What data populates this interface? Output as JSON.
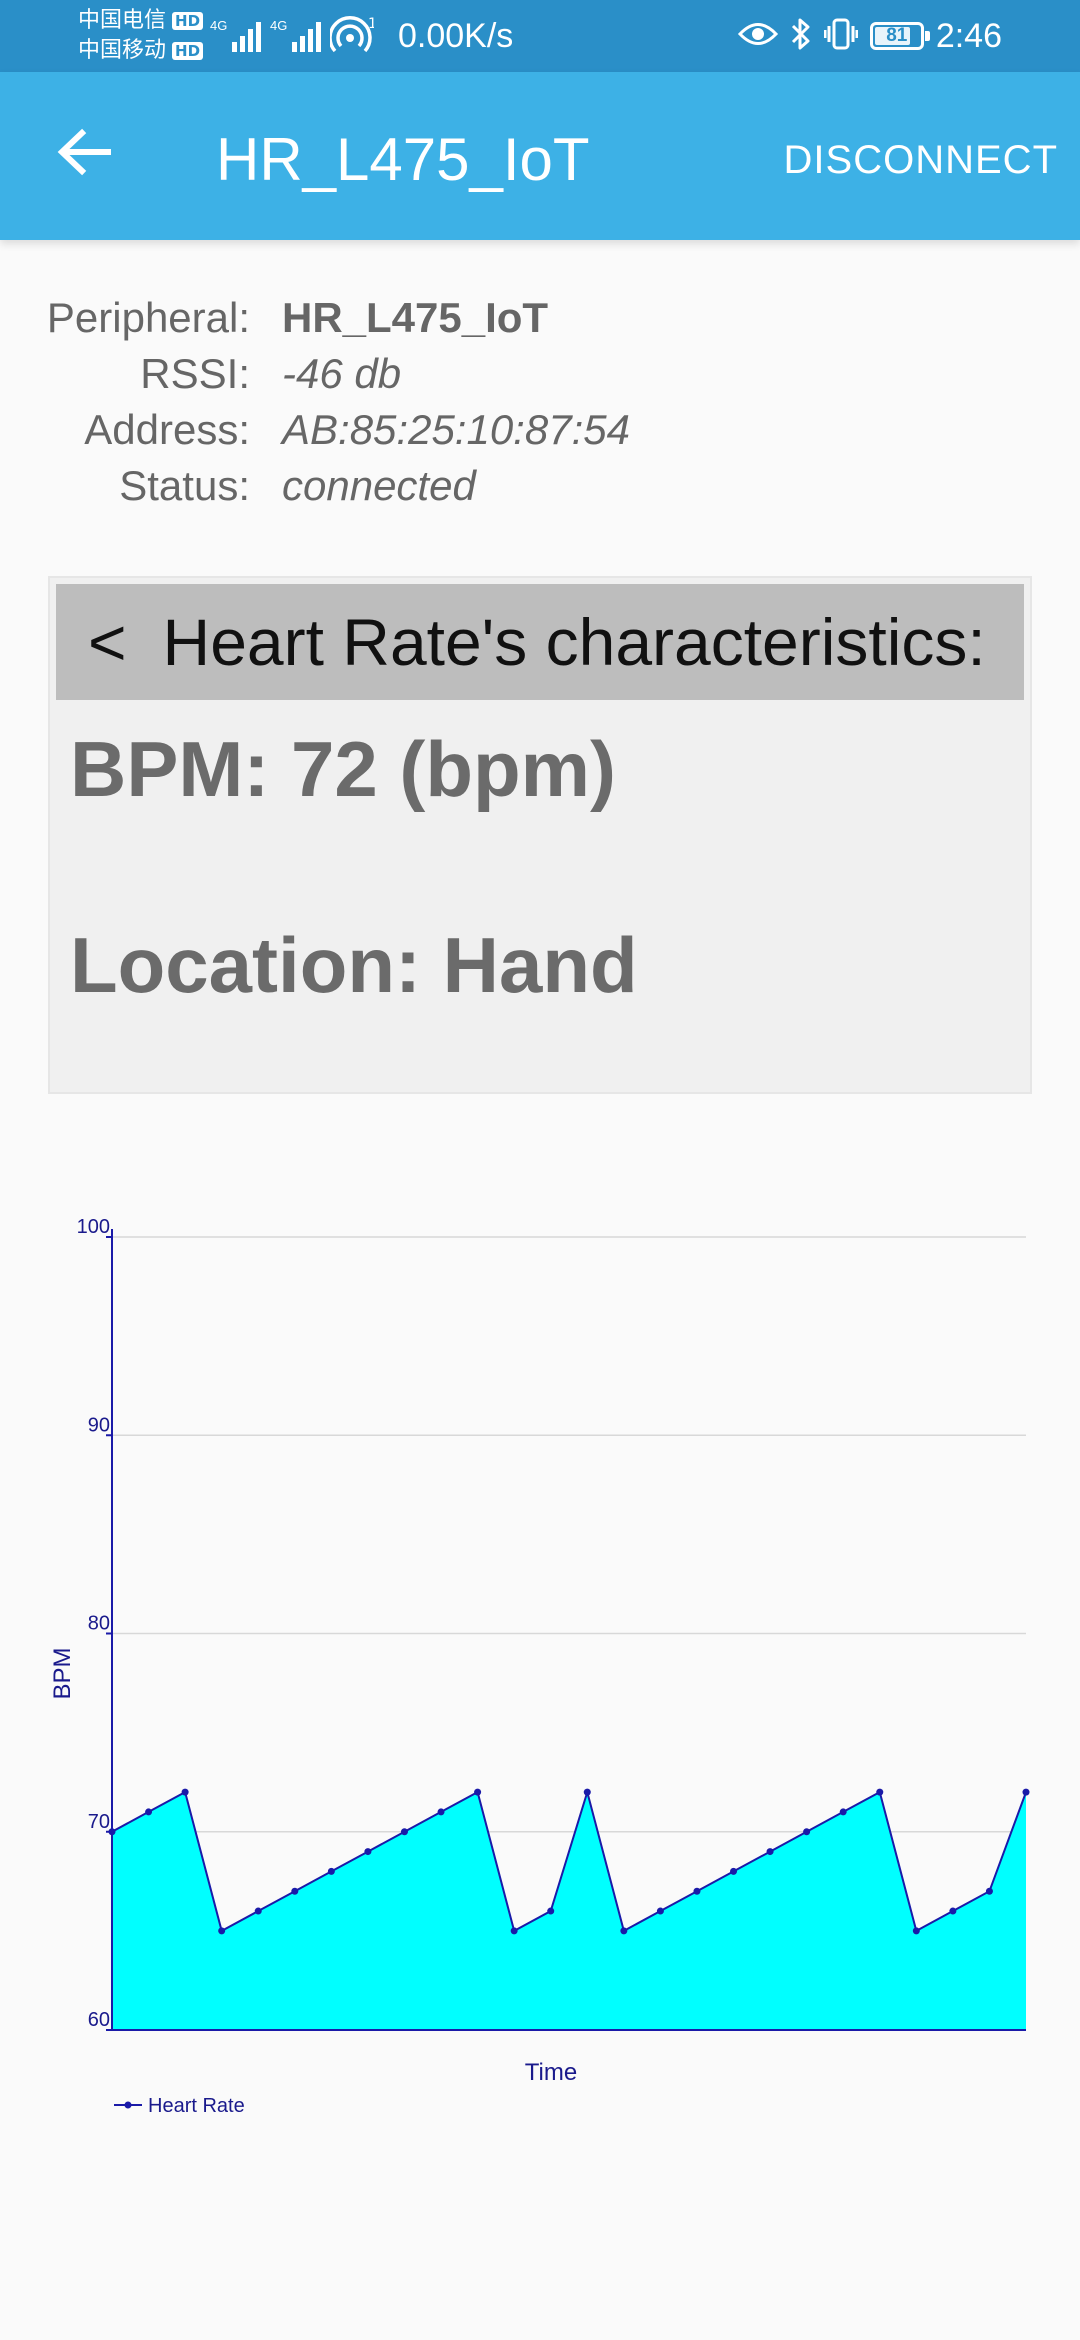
{
  "status_bar": {
    "carrier_1": "中国电信",
    "carrier_2": "中国移动",
    "hd_badge": "HD",
    "network_label": "4G",
    "wifi_superscript": "1",
    "net_speed": "0.00K/s",
    "battery_level": "81",
    "time": "2:46",
    "icons": [
      "eye-icon",
      "bluetooth-icon",
      "vibrate-icon",
      "battery-icon"
    ]
  },
  "app_bar": {
    "title": "HR_L475_IoT",
    "action_label": "DISCONNECT",
    "back_icon": "arrow-left-icon"
  },
  "peripheral": {
    "labels": {
      "peripheral": "Peripheral:",
      "rssi": "RSSI:",
      "address": "Address:",
      "status": "Status:"
    },
    "name": "HR_L475_IoT",
    "rssi": "-46 db",
    "address": "AB:85:25:10:87:54",
    "status": "connected"
  },
  "characteristics": {
    "chevron": "<",
    "title": "Heart Rate's characteristics:",
    "bpm_line": "BPM: 72 (bpm)",
    "location_line": "Location: Hand"
  },
  "colors": {
    "status_bar": "#2a8fc8",
    "app_bar": "#3db1e6",
    "chart_fill": "#00ffff",
    "chart_line": "#1a1aa8",
    "axis_text": "#1a1a8c"
  },
  "chart_data": {
    "type": "area",
    "xlabel": "Time",
    "ylabel": "BPM",
    "ylim": [
      60,
      100
    ],
    "yticks": [
      60,
      70,
      80,
      90,
      100
    ],
    "grid": true,
    "legend_position": "bottom-left",
    "series": [
      {
        "name": "Heart Rate",
        "values": [
          70,
          71,
          72,
          65,
          66,
          67,
          68,
          69,
          70,
          71,
          72,
          65,
          66,
          72,
          65,
          66,
          67,
          68,
          69,
          70,
          71,
          72,
          65,
          66,
          67,
          72
        ]
      }
    ]
  }
}
